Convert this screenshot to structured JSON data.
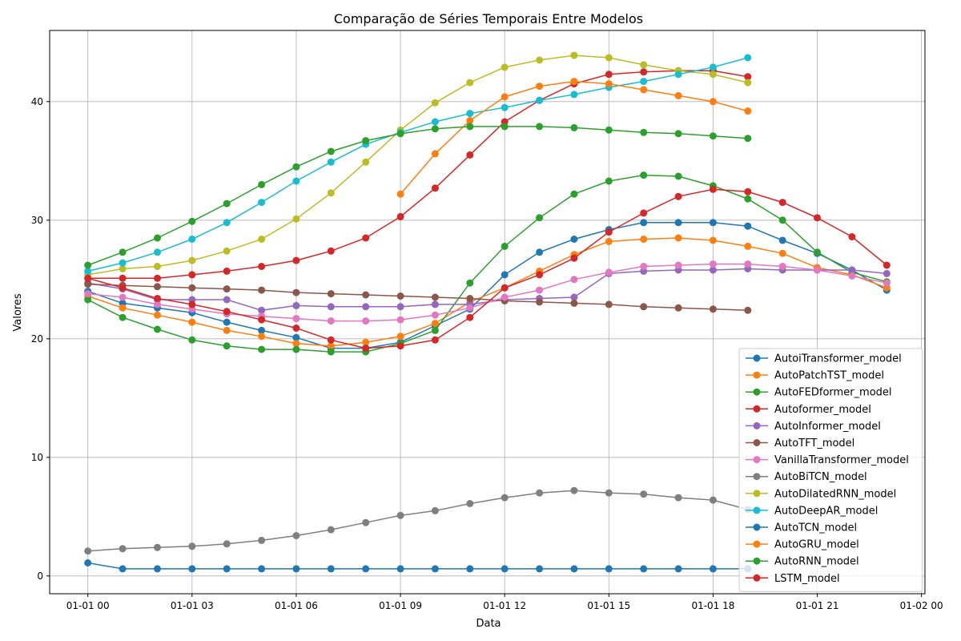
{
  "chart_data": {
    "type": "line",
    "title": "Comparação de Séries Temporais Entre Modelos",
    "xlabel": "Data",
    "ylabel": "Valores",
    "x_unit": "hour",
    "x_start": "01-01 00",
    "x": [
      0,
      1,
      2,
      3,
      4,
      5,
      6,
      7,
      8,
      9,
      10,
      11,
      12,
      13,
      14,
      15,
      16,
      17,
      18,
      19,
      20,
      21,
      22,
      23
    ],
    "xlim": [
      -1.1,
      24.1
    ],
    "ylim": [
      -1.5,
      46
    ],
    "x_ticks": [
      {
        "value": 0,
        "label": "01-01 00"
      },
      {
        "value": 3,
        "label": "01-01 03"
      },
      {
        "value": 6,
        "label": "01-01 06"
      },
      {
        "value": 9,
        "label": "01-01 09"
      },
      {
        "value": 12,
        "label": "01-01 12"
      },
      {
        "value": 15,
        "label": "01-01 15"
      },
      {
        "value": 18,
        "label": "01-01 18"
      },
      {
        "value": 21,
        "label": "01-01 21"
      },
      {
        "value": 24,
        "label": "01-02 00"
      }
    ],
    "y_ticks": [
      0,
      10,
      20,
      30,
      40
    ],
    "grid": true,
    "legend_position": "lower-right",
    "series": [
      {
        "name": "AutoiTransformer_model",
        "color": "#1f77b4",
        "values": [
          24.0,
          23.0,
          22.6,
          22.2,
          21.4,
          20.7,
          20.1,
          19.2,
          19.2,
          19.7,
          21.1,
          22.5,
          25.4,
          27.3,
          28.4,
          29.2,
          29.8,
          29.8,
          29.8,
          29.5,
          28.3,
          27.2,
          25.8,
          24.1
        ]
      },
      {
        "name": "AutoPatchTST_model",
        "color": "#ff7f0e",
        "values": [
          23.6,
          22.6,
          22.0,
          21.4,
          20.7,
          20.2,
          19.6,
          19.4,
          19.7,
          20.2,
          21.3,
          23.1,
          24.3,
          25.7,
          27.1,
          28.2,
          28.4,
          28.5,
          28.3,
          27.8,
          27.2,
          26.0,
          25.4,
          24.3
        ]
      },
      {
        "name": "AutoFEDformer_model",
        "color": "#2ca02c",
        "values": [
          23.3,
          21.8,
          20.8,
          19.9,
          19.4,
          19.1,
          19.1,
          18.9,
          18.9,
          19.6,
          20.7,
          24.7,
          27.8,
          30.2,
          32.2,
          33.3,
          33.8,
          33.7,
          32.9,
          31.8,
          30.0,
          27.3,
          25.6,
          24.8
        ]
      },
      {
        "name": "Autoformer_model",
        "color": "#d62728",
        "values": [
          25.1,
          25.1,
          25.1,
          25.4,
          25.7,
          26.1,
          26.6,
          27.4,
          28.5,
          30.3,
          32.7,
          35.5,
          38.3,
          40.1,
          41.5,
          42.3,
          42.5,
          42.6,
          42.6,
          42.1,
          null,
          null,
          null,
          null
        ]
      },
      {
        "name": "AutoInformer_model",
        "color": "#9467bd",
        "values": [
          24.7,
          24.2,
          23.3,
          23.3,
          23.3,
          22.4,
          22.8,
          22.7,
          22.7,
          22.7,
          22.9,
          22.9,
          23.3,
          23.4,
          23.5,
          25.5,
          25.7,
          25.8,
          25.8,
          25.9,
          25.8,
          25.8,
          25.8,
          25.5
        ]
      },
      {
        "name": "AutoTFT_model",
        "color": "#8c564b",
        "values": [
          24.6,
          24.5,
          24.4,
          24.3,
          24.2,
          24.1,
          23.9,
          23.8,
          23.7,
          23.6,
          23.5,
          23.4,
          23.2,
          23.1,
          23.0,
          22.9,
          22.7,
          22.6,
          22.5,
          22.4,
          null,
          null,
          null,
          null
        ]
      },
      {
        "name": "VanillaTransformer_model",
        "color": "#e377c2",
        "values": [
          23.8,
          23.5,
          22.9,
          22.5,
          22.1,
          21.9,
          21.7,
          21.5,
          21.5,
          21.6,
          22.0,
          22.6,
          23.5,
          24.1,
          25.0,
          25.6,
          26.1,
          26.2,
          26.3,
          26.3,
          26.1,
          25.8,
          25.3,
          24.7
        ]
      },
      {
        "name": "AutoBiTCN_model",
        "color": "#7f7f7f",
        "values": [
          2.1,
          2.3,
          2.4,
          2.5,
          2.7,
          3.0,
          3.4,
          3.9,
          4.5,
          5.1,
          5.5,
          6.1,
          6.6,
          7.0,
          7.2,
          7.0,
          6.9,
          6.6,
          6.4,
          5.6,
          null,
          null,
          null,
          null
        ]
      },
      {
        "name": "AutoDilatedRNN_model",
        "color": "#bcbd22",
        "values": [
          25.4,
          25.9,
          26.1,
          26.6,
          27.4,
          28.4,
          30.1,
          32.3,
          34.9,
          37.6,
          39.9,
          41.6,
          42.9,
          43.5,
          43.9,
          43.7,
          43.1,
          42.6,
          42.3,
          41.6,
          null,
          null,
          null,
          null
        ]
      },
      {
        "name": "AutoDeepAR_model",
        "color": "#17becf",
        "values": [
          25.7,
          26.4,
          27.3,
          28.4,
          29.8,
          31.5,
          33.3,
          34.9,
          36.4,
          37.4,
          38.3,
          39.0,
          39.5,
          40.1,
          40.6,
          41.2,
          41.7,
          42.3,
          42.9,
          43.7,
          null,
          null,
          null,
          null
        ]
      },
      {
        "name": "AutoTCN_model",
        "color": "#1f77b4",
        "values": [
          1.1,
          0.6,
          0.6,
          0.6,
          0.6,
          0.6,
          0.6,
          0.6,
          0.6,
          0.6,
          0.6,
          0.6,
          0.6,
          0.6,
          0.6,
          0.6,
          0.6,
          0.6,
          0.6,
          0.6,
          null,
          null,
          null,
          null
        ]
      },
      {
        "name": "AutoGRU_model",
        "color": "#ff7f0e",
        "values": [
          null,
          null,
          null,
          null,
          null,
          null,
          null,
          null,
          null,
          32.2,
          35.6,
          38.4,
          40.4,
          41.3,
          41.7,
          41.5,
          41.0,
          40.5,
          40.0,
          39.2,
          null,
          null,
          null,
          null
        ]
      },
      {
        "name": "AutoRNN_model",
        "color": "#2ca02c",
        "values": [
          26.2,
          27.3,
          28.5,
          29.9,
          31.4,
          33.0,
          34.5,
          35.8,
          36.7,
          37.3,
          37.7,
          37.9,
          37.9,
          37.9,
          37.8,
          37.6,
          37.4,
          37.3,
          37.1,
          36.9,
          null,
          null,
          null,
          null
        ]
      },
      {
        "name": "LSTM_model",
        "color": "#d62728",
        "values": [
          25.1,
          24.3,
          23.4,
          22.9,
          22.3,
          21.6,
          20.9,
          19.9,
          19.2,
          19.4,
          19.9,
          21.8,
          24.3,
          25.4,
          26.8,
          29.0,
          30.6,
          32.0,
          32.6,
          32.4,
          31.5,
          30.2,
          28.6,
          26.2
        ]
      }
    ]
  }
}
